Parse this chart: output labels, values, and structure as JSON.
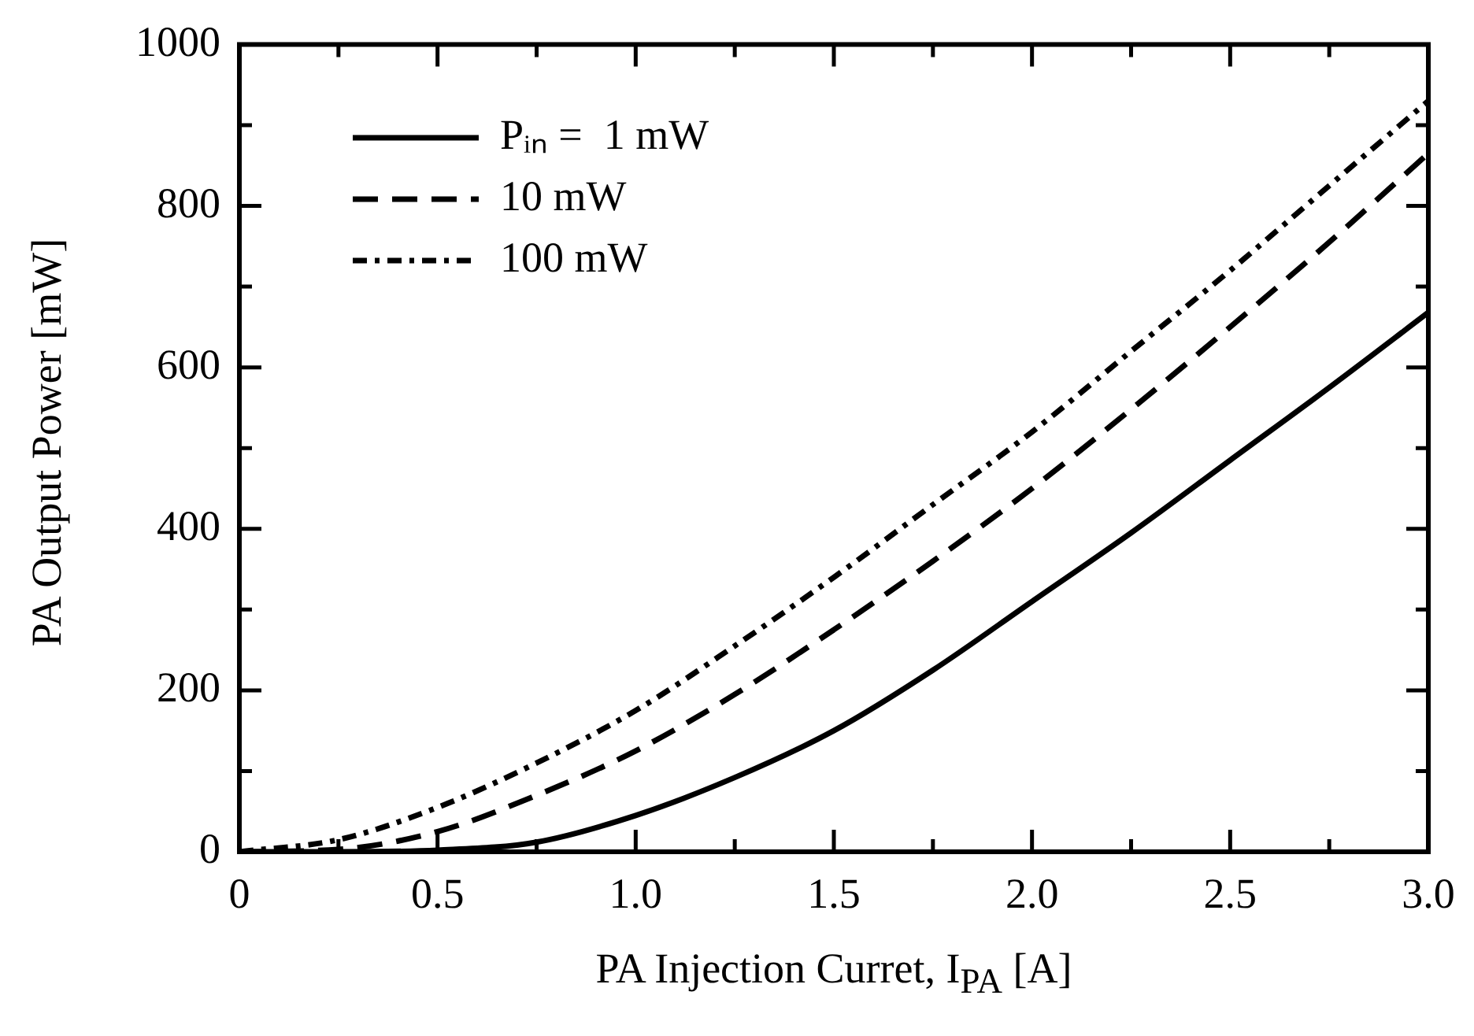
{
  "chart_data": {
    "type": "line",
    "xlabel": "PA Injection Curret, I$_{PA}$ [A]",
    "ylabel": "PA Output Power [mW]",
    "x": [
      0,
      0.25,
      0.5,
      0.75,
      1.0,
      1.25,
      1.5,
      1.75,
      2.0,
      2.25,
      2.5,
      2.75,
      3.0
    ],
    "series": [
      {
        "name": "Pᵢₙ =  1 mW",
        "color": "#000000",
        "line_style": "solid",
        "values": [
          0,
          0,
          2,
          12,
          45,
          92,
          150,
          225,
          310,
          395,
          485,
          575,
          668
        ]
      },
      {
        "name": "10 mW",
        "color": "#000000",
        "line_style": "dashed",
        "values": [
          0,
          3,
          25,
          70,
          125,
          195,
          275,
          360,
          450,
          548,
          650,
          755,
          865
        ]
      },
      {
        "name": "100 mW",
        "color": "#000000",
        "line_style": "dotted",
        "values": [
          0,
          15,
          55,
          110,
          175,
          255,
          340,
          430,
          520,
          620,
          720,
          825,
          930
        ]
      }
    ],
    "xlim": [
      0,
      3.0
    ],
    "ylim": [
      0,
      1000
    ],
    "xticks": [
      0,
      {
        "value": 0.25,
        "label": null
      },
      {
        "value": 0.5,
        "label": "0.5"
      },
      {
        "value": 0.75,
        "label": null
      },
      {
        "value": 1,
        "label": "1.0"
      },
      {
        "value": 1.25,
        "label": null
      },
      {
        "value": 1.5,
        "label": "1.5"
      },
      {
        "value": 1.75,
        "label": null
      },
      {
        "value": 2,
        "label": "2.0"
      },
      {
        "value": 2.25,
        "label": null
      },
      {
        "value": 2.5,
        "label": "2.5"
      },
      {
        "value": 2.75,
        "label": null
      },
      {
        "value": 3,
        "label": "3.0"
      }
    ],
    "yticks": [
      0,
      {
        "value": 100,
        "label": null
      },
      200,
      {
        "value": 300,
        "label": null
      },
      400,
      {
        "value": 500,
        "label": null
      },
      600,
      {
        "value": 700,
        "label": null
      },
      800,
      {
        "value": 900,
        "label": null
      },
      1000
    ],
    "grid": false,
    "legend": "top left",
    "marker": "none"
  }
}
